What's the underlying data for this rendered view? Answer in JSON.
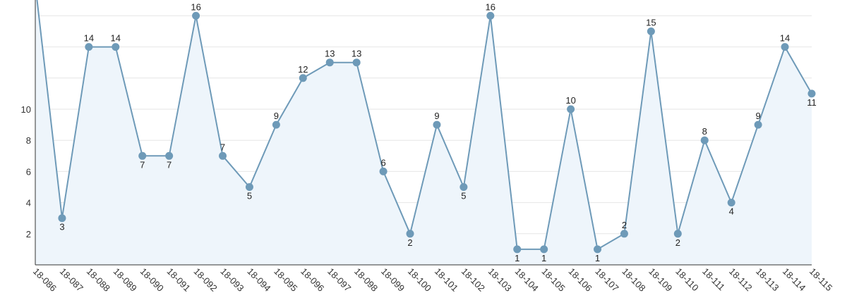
{
  "chart_data": {
    "type": "area",
    "categories": [
      "18-086",
      "18-087",
      "18-088",
      "18-089",
      "18-090",
      "18-091",
      "18-092",
      "18-093",
      "18-094",
      "18-095",
      "18-096",
      "18-097",
      "18-098",
      "18-099",
      "18-100",
      "18-101",
      "18-102",
      "18-103",
      "18-104",
      "18-105",
      "18-106",
      "18-107",
      "18-108",
      "18-109",
      "18-110",
      "18-111",
      "18-112",
      "18-113",
      "18-114",
      "18-115"
    ],
    "series": [
      {
        "values": [
          18,
          3,
          14,
          14,
          7,
          7,
          16,
          7,
          5,
          9,
          12,
          13,
          13,
          6,
          2,
          9,
          5,
          16,
          1,
          1,
          10,
          1,
          2,
          15,
          2,
          8,
          4,
          9,
          14,
          11
        ]
      }
    ],
    "data_labels": [
      "",
      "3",
      "14",
      "14",
      "7",
      "7",
      "16",
      "7",
      "5",
      "9",
      "12",
      "13",
      "13",
      "6",
      "2",
      "9",
      "5",
      "16",
      "1",
      "1",
      "10",
      "1",
      "2",
      "15",
      "2",
      "8",
      "4",
      "9",
      "14",
      "11"
    ],
    "y_tick_labels": [
      "2",
      "4",
      "6",
      "8",
      "10"
    ],
    "ylim": [
      0,
      16.5
    ],
    "grid": true,
    "legend": "none",
    "colors": {
      "line": "#6e9ab8",
      "marker": "#6e9ab8",
      "area_fill": "#eef5fb",
      "grid": "#e6e6e6",
      "axis": "#333333"
    }
  }
}
